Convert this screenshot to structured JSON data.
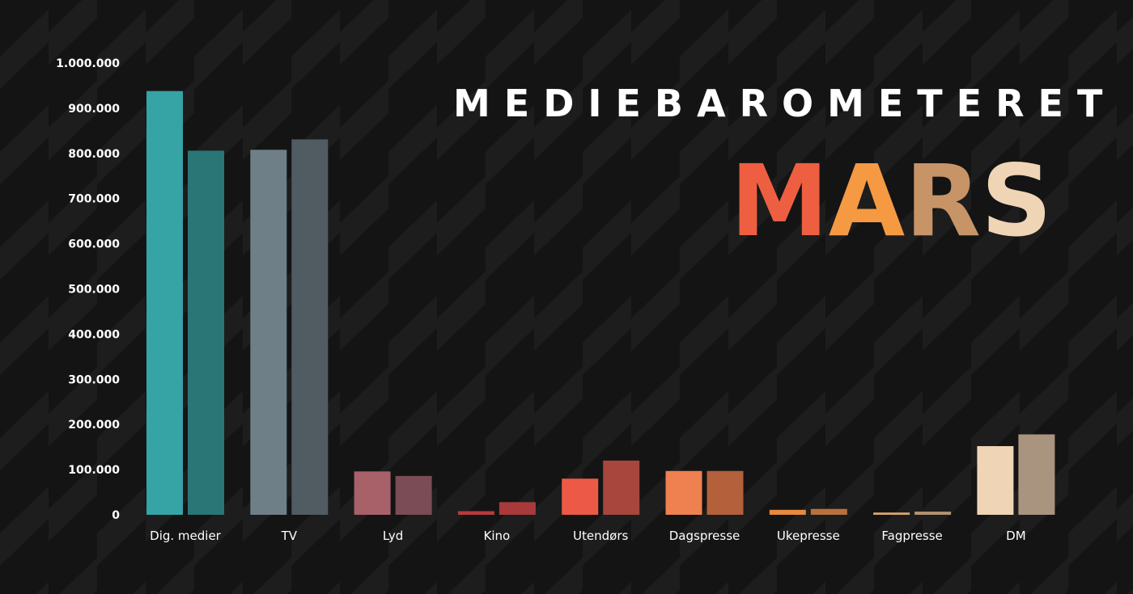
{
  "header": {
    "title": "MEDIEBAROMETERET",
    "month_letters": [
      "M",
      "A",
      "R",
      "S"
    ],
    "month_letter_colors": [
      "#ee5f41",
      "#f59a43",
      "#c79468",
      "#f0d4b6"
    ]
  },
  "chart_data": {
    "type": "bar",
    "title": "",
    "xlabel": "",
    "ylabel": "",
    "ylim": [
      0,
      1000000
    ],
    "yticks": [
      0,
      100000,
      200000,
      300000,
      400000,
      500000,
      600000,
      700000,
      800000,
      900000,
      1000000
    ],
    "ytick_labels": [
      "0",
      "100.000",
      "200.000",
      "300.000",
      "400.000",
      "500.000",
      "600.000",
      "700.000",
      "800.000",
      "900.000",
      "1.000.000"
    ],
    "grid": false,
    "legend": "none",
    "categories": [
      "Dig. medier",
      "TV",
      "Lyd",
      "Kino",
      "Utendørs",
      "Dagspresse",
      "Ukepresse",
      "Fagpresse",
      "DM"
    ],
    "series": [
      {
        "values": [
          938000,
          808000,
          96000,
          8000,
          80000,
          97000,
          11000,
          5000,
          152000
        ]
      },
      {
        "values": [
          806000,
          831000,
          86000,
          28000,
          120000,
          97000,
          13000,
          7000,
          178000
        ]
      }
    ],
    "colors": [
      [
        "#36a3a5",
        "#2a7677"
      ],
      [
        "#6e7f87",
        "#505c62"
      ],
      [
        "#a86169",
        "#7b4c55"
      ],
      [
        "#b83a3e",
        "#a93a3c"
      ],
      [
        "#ec5a47",
        "#a8463d"
      ],
      [
        "#ef8150",
        "#b3603b"
      ],
      [
        "#e68a3d",
        "#b8713e"
      ],
      [
        "#d9a56d",
        "#b39272"
      ],
      [
        "#f0d4b6",
        "#a99480"
      ]
    ]
  }
}
